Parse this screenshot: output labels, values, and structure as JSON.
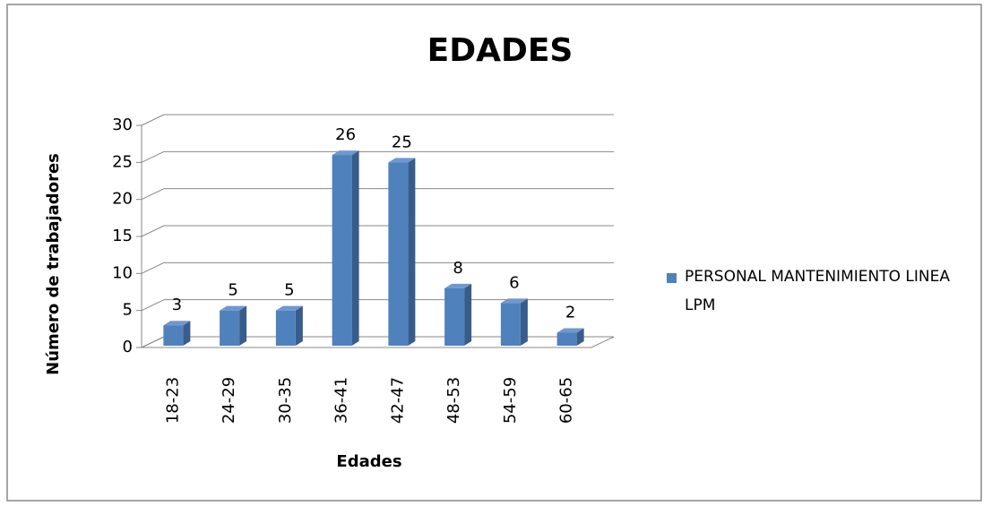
{
  "chart_data": {
    "type": "bar3d",
    "title": "EDADES",
    "x_label": "Edades",
    "y_label": "Número de  trabajadores",
    "categories": [
      "18-23",
      "24-29",
      "30-35",
      "36-41",
      "42-47",
      "48-53",
      "54-59",
      "60-65"
    ],
    "series": [
      {
        "name": "PERSONAL MANTENIMIENTO LINEA LPM",
        "color": "#4f81bd",
        "values": [
          3,
          5,
          5,
          26,
          25,
          8,
          6,
          2
        ]
      }
    ],
    "ylim": [
      0,
      30
    ],
    "yticks": [
      0,
      5,
      10,
      15,
      20,
      25,
      30
    ],
    "grid": true,
    "legend": "right"
  }
}
